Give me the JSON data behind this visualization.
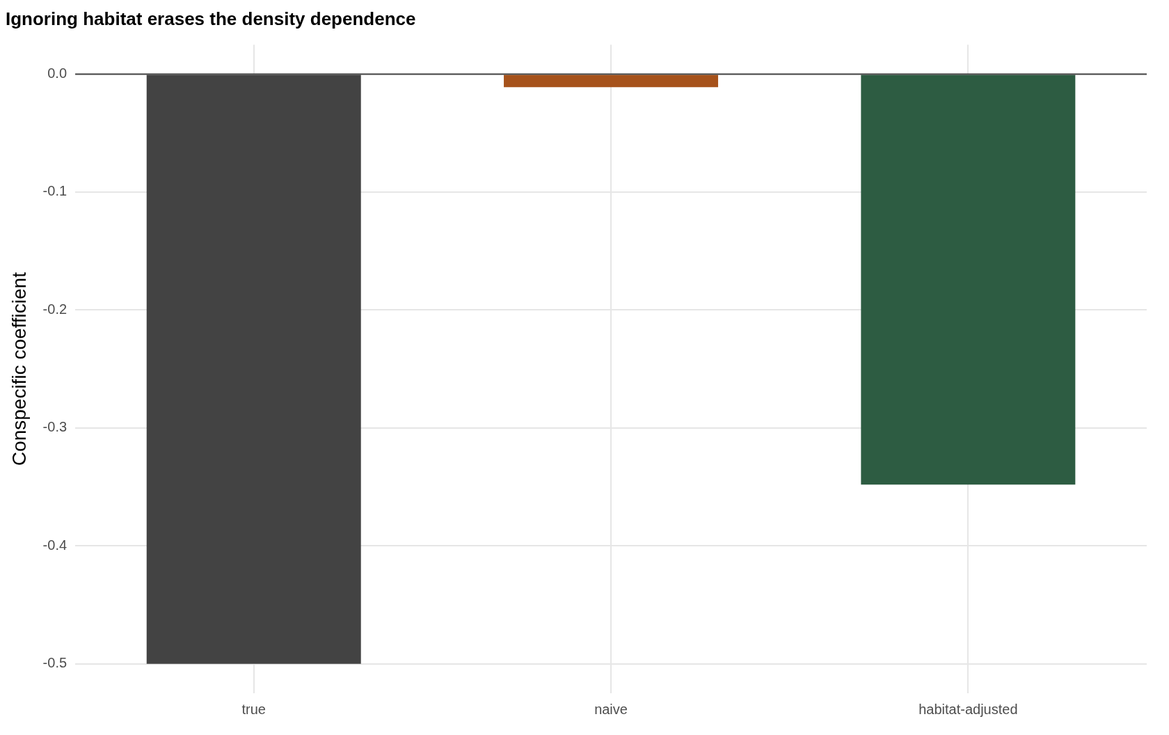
{
  "chart_data": {
    "type": "bar",
    "title": "Ignoring habitat erases the density dependence",
    "ylabel": "Conspecific coefficient",
    "categories": [
      "true",
      "naive",
      "habitat-adjusted"
    ],
    "values": [
      -0.5,
      -0.011,
      -0.348
    ],
    "colors": [
      "#434343",
      "#a6521b",
      "#2d5c42"
    ],
    "ylim": [
      -0.525,
      0.025
    ],
    "yticks": [
      {
        "value": -0.5,
        "label": "-0.5"
      },
      {
        "value": -0.4,
        "label": "-0.4"
      },
      {
        "value": -0.3,
        "label": "-0.3"
      },
      {
        "value": -0.2,
        "label": "-0.2"
      },
      {
        "value": -0.1,
        "label": "-0.1"
      },
      {
        "value": 0,
        "label": "0.0"
      }
    ],
    "ref_lines": [
      {
        "axis": "y",
        "value": 0,
        "color": "#444444"
      }
    ],
    "grid": true,
    "legend": false
  }
}
